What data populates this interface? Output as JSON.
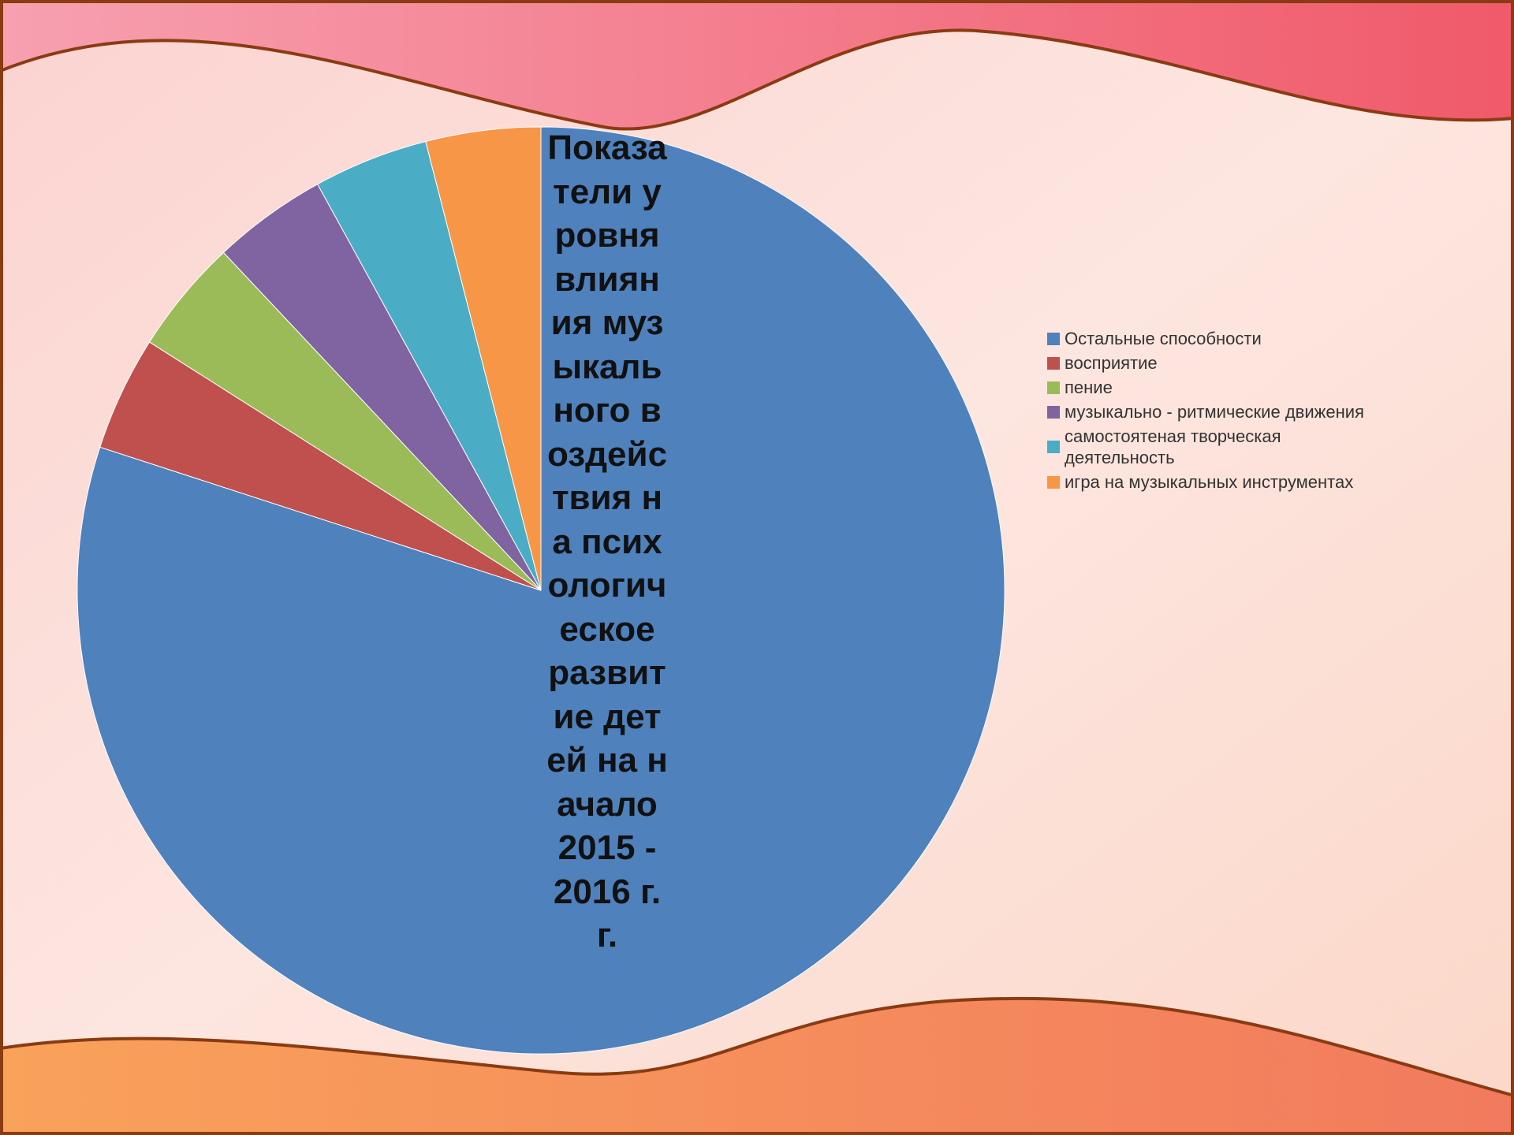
{
  "chart_data": {
    "type": "pie",
    "title": "Показатели уровня влияния музыкального воздействия на психологическое развитие детей на начало 2015 - 2016 г.г.",
    "categories": [
      "Остальные способности",
      "восприятие",
      "пение",
      "музыкально - ритмические движения",
      "самостоятеная творческая деятельность",
      "игра на музыкальных инструментах"
    ],
    "values": [
      80,
      4,
      4,
      4,
      4,
      4
    ],
    "colors": [
      "#4f81bd",
      "#c0504d",
      "#9bbb59",
      "#8064a2",
      "#4bacc6",
      "#f79646"
    ],
    "legend": "right"
  }
}
